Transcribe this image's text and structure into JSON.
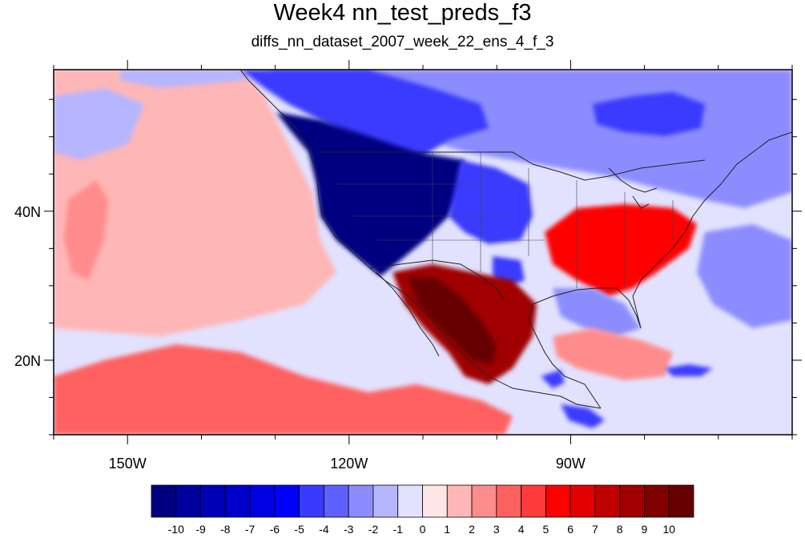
{
  "title": "Week4 nn_test_preds_f3",
  "subtitle": "diffs_nn_dataset_2007_week_22_ens_4_f_3",
  "map": {
    "lon_range": [
      -160,
      -60
    ],
    "lat_range": [
      10,
      59
    ],
    "x_ticks": [
      {
        "value": -150,
        "label": "150W"
      },
      {
        "value": -120,
        "label": "120W"
      },
      {
        "value": -90,
        "label": "90W"
      }
    ],
    "y_ticks": [
      {
        "value": 40,
        "label": "40N"
      },
      {
        "value": 20,
        "label": "20N"
      }
    ],
    "regions": [
      {
        "name": "pacific-background",
        "level": 1
      },
      {
        "name": "north-pacific-mixed",
        "level": -1
      },
      {
        "name": "canada-west-strong-negative",
        "level": -4
      },
      {
        "name": "us-west-extreme-negative",
        "level": -10
      },
      {
        "name": "canada-central-negative",
        "level": -2
      },
      {
        "name": "hudson-bay-negative",
        "level": -4
      },
      {
        "name": "great-plains-negative",
        "level": -4
      },
      {
        "name": "southeast-us-positive",
        "level": 5
      },
      {
        "name": "mexico-strong-positive",
        "level": 8
      },
      {
        "name": "mexico-core-positive",
        "level": 10
      },
      {
        "name": "gulf-of-mexico-negative",
        "level": -2
      },
      {
        "name": "atlantic-negative",
        "level": -2
      },
      {
        "name": "tropical-pacific-positive",
        "level": 3
      },
      {
        "name": "central-america-negative",
        "level": -4
      },
      {
        "name": "caribbean-positive",
        "level": 2
      },
      {
        "name": "hawaii-area-positive",
        "level": 2
      }
    ]
  },
  "colorbar": {
    "labels": [
      "-10",
      "-9",
      "-8",
      "-7",
      "-6",
      "-5",
      "-4",
      "-3",
      "-2",
      "-1",
      "0",
      "1",
      "2",
      "3",
      "4",
      "5",
      "6",
      "7",
      "8",
      "9",
      "10"
    ],
    "colors": [
      "#000080",
      "#00009c",
      "#0000b4",
      "#0000cc",
      "#0000e3",
      "#0000ff",
      "#3a3aff",
      "#6060ff",
      "#8c8cff",
      "#b6b6ff",
      "#e2e2ff",
      "#ffe6e6",
      "#ffb6b6",
      "#ff8c8c",
      "#ff6060",
      "#ff3a3a",
      "#ff0000",
      "#e30000",
      "#c00000",
      "#a00000",
      "#800000",
      "#660000"
    ]
  }
}
